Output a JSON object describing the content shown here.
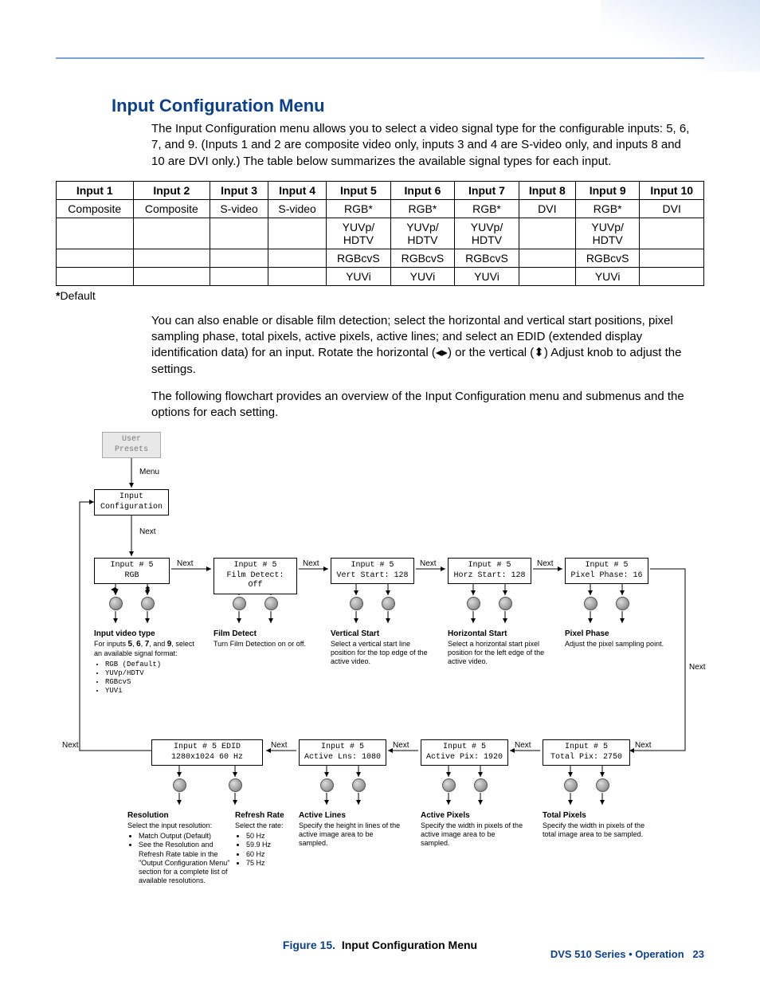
{
  "section_title": "Input Configuration Menu",
  "para1": "The Input Configuration menu allows you to select a video signal type for the configurable inputs: 5, 6, 7, and 9. (Inputs 1 and 2 are composite video only, inputs 3 and 4 are S-video only, and inputs 8 and 10 are DVI only.) The table below summarizes the available signal types for each input.",
  "table": {
    "headers": [
      "Input 1",
      "Input 2",
      "Input 3",
      "Input 4",
      "Input 5",
      "Input 6",
      "Input 7",
      "Input 8",
      "Input 9",
      "Input 10"
    ],
    "rows": [
      [
        "Composite",
        "Composite",
        "S-video",
        "S-video",
        "RGB*",
        "RGB*",
        "RGB*",
        "DVI",
        "RGB*",
        "DVI"
      ],
      [
        "",
        "",
        "",
        "",
        "YUVp/ HDTV",
        "YUVp/ HDTV",
        "YUVp/ HDTV",
        "",
        "YUVp/ HDTV",
        ""
      ],
      [
        "",
        "",
        "",
        "",
        "RGBcvS",
        "RGBcvS",
        "RGBcvS",
        "",
        "RGBcvS",
        ""
      ],
      [
        "",
        "",
        "",
        "",
        "YUVi",
        "YUVi",
        "YUVi",
        "",
        "YUVi",
        ""
      ]
    ]
  },
  "default_note": "*Default",
  "para2": "You can also enable or disable film detection; select the horizontal and vertical start positions, pixel sampling phase, total pixels, active pixels, active lines; and select an EDID (extended display identification data) for an input. Rotate the horizontal (◂▸) or the vertical (⬍) Adjust knob to adjust the settings.",
  "para3": "The following flowchart provides an overview of the Input Configuration menu and submenus and the options for each setting.",
  "flow": {
    "user_presets": "User\nPresets",
    "menu_label": "Menu",
    "input_config": "Input\nConfiguration",
    "next_label": "Next",
    "row1": {
      "b1": "Input # 5\nRGB",
      "b2": "Input # 5\nFilm Detect: Off",
      "b3": "Input # 5\nVert Start: 128",
      "b4": "Input # 5\nHorz Start: 128",
      "b5": "Input # 5\nPixel Phase: 16"
    },
    "desc1": {
      "t1_title": "Input video type",
      "t1_body": "For inputs 5, 6, 7, and 9, select an available signal format:",
      "t1_items": [
        "RGB (Default)",
        "YUVp/HDTV",
        "RGBcvS",
        "YUVi"
      ],
      "t2_title": "Film Detect",
      "t2_body": "Turn Film Detection on or off.",
      "t3_title": "Vertical Start",
      "t3_body": "Select a vertical start line position for the top edge of the active video.",
      "t4_title": "Horizontal Start",
      "t4_body": "Select a horizontal start pixel position for the left edge of the active video.",
      "t5_title": "Pixel Phase",
      "t5_body": "Adjust the pixel sampling point."
    },
    "row2": {
      "b1": "Input # 5 EDID\n1280x1024  60 Hz",
      "b2": "Input # 5\nActive Lns: 1080",
      "b3": "Input # 5\nActive Pix: 1920",
      "b4": "Input # 5\nTotal Pix:  2750"
    },
    "desc2": {
      "t1_title": "Resolution",
      "t1_body": "Select the input resolution:",
      "t1_items": [
        "Match Output (Default)",
        "See the Resolution and Refresh Rate table in the \"Output Configuration Menu\" section for a complete list of available resolutions."
      ],
      "t2_title": "Refresh Rate",
      "t2_body": "Select the rate:",
      "t2_items": [
        "50 Hz",
        "59.9 Hz",
        "60 Hz",
        "75 Hz"
      ],
      "t3_title": "Active Lines",
      "t3_body": "Specify the height in lines of the active image area to be sampled.",
      "t4_title": "Active Pixels",
      "t4_body": "Specify the width in pixels of the active image area to be sampled.",
      "t5_title": "Total Pixels",
      "t5_body": "Specify the width in pixels of the total image area to be sampled."
    }
  },
  "figure_num": "Figure 15.",
  "figure_title": "Input Configuration Menu",
  "footer": "DVS 510 Series • Operation",
  "page_num": "23"
}
